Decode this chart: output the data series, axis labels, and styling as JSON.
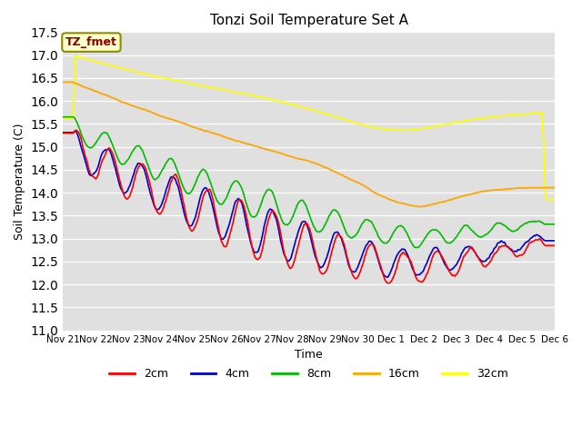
{
  "title": "Tonzi Soil Temperature Set A",
  "xlabel": "Time",
  "ylabel": "Soil Temperature (C)",
  "ylim": [
    11.0,
    17.5
  ],
  "annotation": "TZ_fmet",
  "annotation_color": "#8B0000",
  "annotation_bg": "#FFFFCC",
  "annotation_border": "#8B8B00",
  "bg_color": "#E0E0E0",
  "line_colors": {
    "2cm": "#FF0000",
    "4cm": "#0000CC",
    "8cm": "#00BB00",
    "16cm": "#FFA500",
    "32cm": "#FFFF00"
  },
  "x_labels": [
    "Nov 21",
    "Nov 22",
    "Nov 23",
    "Nov 24",
    "Nov 25",
    "Nov 26",
    "Nov 27",
    "Nov 28",
    "Nov 29",
    "Nov 30",
    "Dec 1",
    "Dec 2",
    "Dec 3",
    "Dec 4",
    "Dec 5",
    "Dec 6"
  ],
  "n_points": 480
}
